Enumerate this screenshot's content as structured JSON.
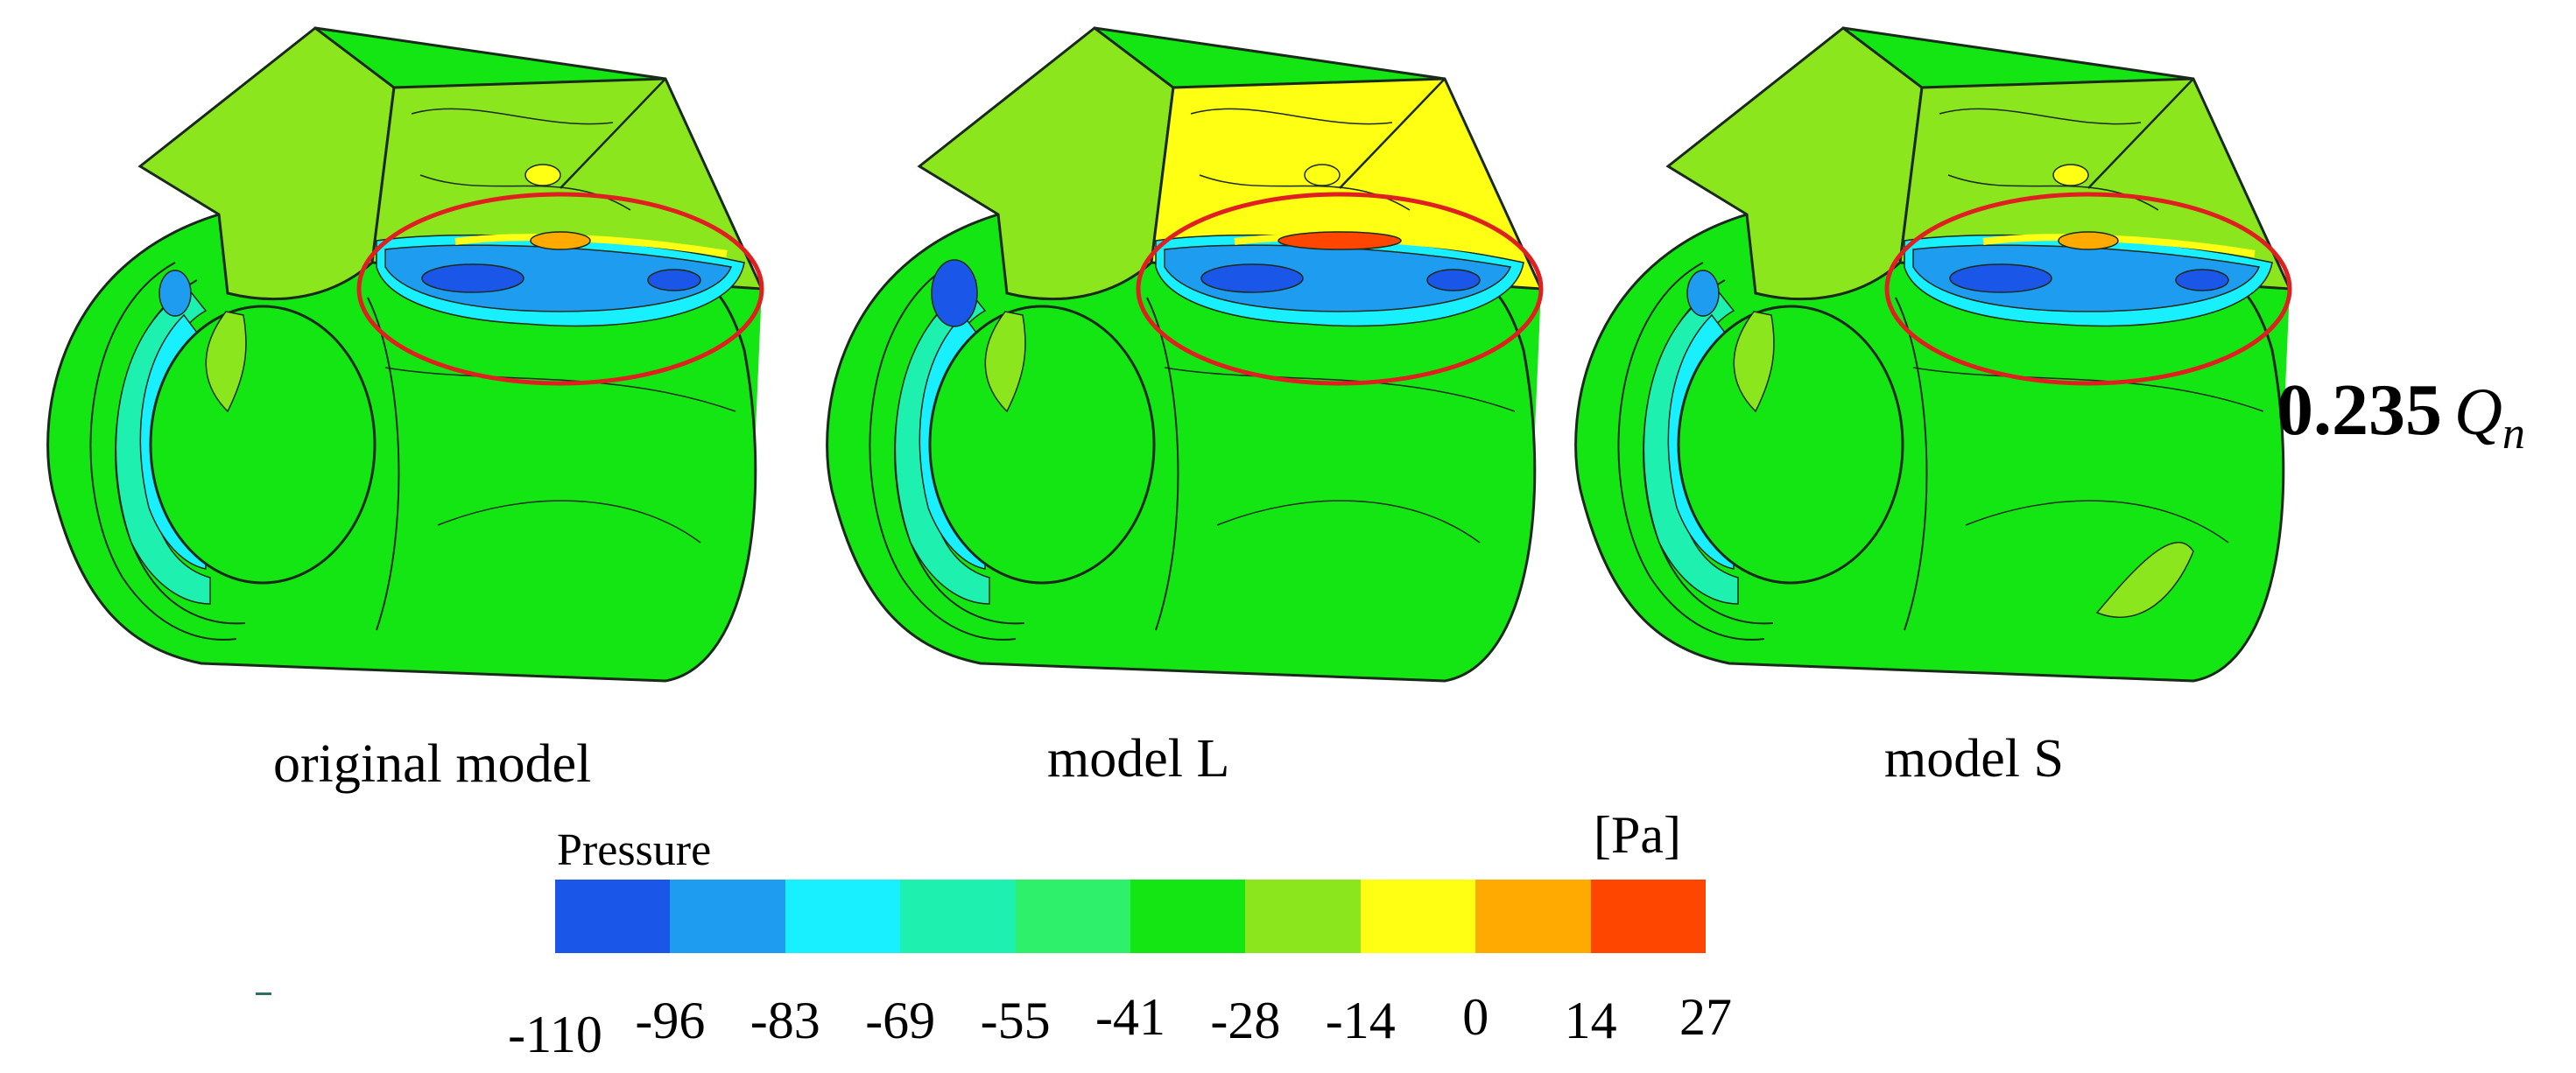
{
  "panels": [
    {
      "caption": "original model"
    },
    {
      "caption": "model L"
    },
    {
      "caption": "model S"
    }
  ],
  "flow_rate": {
    "value": "0.235",
    "symbol": "Q",
    "subscript": "n"
  },
  "legend": {
    "title": "Pressure",
    "unit": "[Pa]",
    "ticks": [
      "-110",
      "-96",
      "-83",
      "-69",
      "-55",
      "-41",
      "-28",
      "-14",
      "0",
      "14",
      "27"
    ],
    "colors": [
      "#1a56e8",
      "#1e9cf0",
      "#19f0ff",
      "#1ef0b0",
      "#2ef06a",
      "#14e614",
      "#8ce61e",
      "#ffff14",
      "#ffaa00",
      "#ff4600"
    ]
  },
  "highlight_color": "#e02020",
  "outline_color": "#1a2a1a"
}
